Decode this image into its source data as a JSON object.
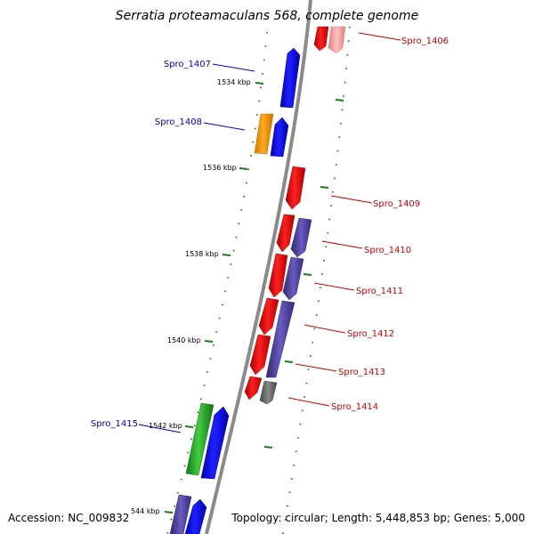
{
  "title": "Serratia proteamaculans 568, complete genome",
  "accession": "Accession: NC_009832",
  "summary": "Topology: circular; Length: 5,448,853 bp; Genes: 5,000",
  "colors": {
    "forward_label": "#0000cc",
    "reverse_label": "#cc0000",
    "tick": "#1a7a1a",
    "backbone": "#8a8a8a",
    "red": "#ee0000",
    "blue": "#0000ee",
    "navy": "#4a3f90",
    "orange": "#ff9900",
    "green": "#22aa22",
    "gray": "#666666",
    "pink": "#ee9a9a"
  },
  "ticks": [
    {
      "label": "1534 kbp"
    },
    {
      "label": "1536 kbp"
    },
    {
      "label": "1538 kbp"
    },
    {
      "label": "1540 kbp"
    },
    {
      "label": "1542 kbp"
    },
    {
      "label": "544 kbp"
    }
  ],
  "genes": {
    "forward": [
      {
        "label": "Spro_1407",
        "color": "blue"
      },
      {
        "label": "Spro_1408",
        "color": "orange"
      },
      {
        "label": "Spro_1415",
        "color": "green"
      }
    ],
    "reverse": [
      {
        "label": "Spro_1406",
        "color": "red"
      },
      {
        "label": "Spro_1409",
        "color": "red"
      },
      {
        "label": "Spro_1410",
        "color": "navy"
      },
      {
        "label": "Spro_1411",
        "color": "navy"
      },
      {
        "label": "Spro_1412",
        "color": "navy"
      },
      {
        "label": "Spro_1413",
        "color": "navy"
      },
      {
        "label": "Spro_1414",
        "color": "gray"
      }
    ]
  }
}
